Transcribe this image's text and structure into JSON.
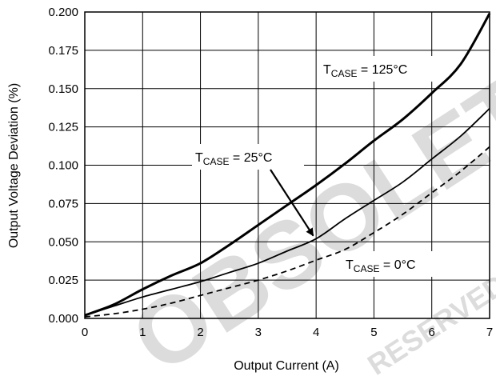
{
  "watermark": {
    "text": "OBSOLETE",
    "subtext": "RESERVED DEVICE",
    "color": "#dcdcdc"
  },
  "chart_data": {
    "type": "line",
    "title": "",
    "xlabel": "Output Current (A)",
    "ylabel": "Output Voltage Deviation (%)",
    "xlim": [
      0,
      7
    ],
    "ylim": [
      0,
      0.2
    ],
    "x_ticks": [
      "0",
      "1",
      "2",
      "3",
      "4",
      "5",
      "6",
      "7"
    ],
    "y_ticks": [
      "0.000",
      "0.025",
      "0.050",
      "0.075",
      "0.100",
      "0.125",
      "0.150",
      "0.175",
      "0.200"
    ],
    "grid": true,
    "series": [
      {
        "style": "thick-solid",
        "color": "#000000",
        "x": [
          0,
          0.5,
          1,
          1.5,
          2,
          2.5,
          3,
          3.5,
          4,
          4.5,
          5,
          5.5,
          6,
          6.5,
          7
        ],
        "y": [
          0.002,
          0.009,
          0.019,
          0.028,
          0.036,
          0.048,
          0.061,
          0.074,
          0.087,
          0.101,
          0.116,
          0.13,
          0.147,
          0.166,
          0.199
        ]
      },
      {
        "style": "thin-solid",
        "color": "#000000",
        "x": [
          0,
          0.5,
          1,
          1.5,
          2,
          2.5,
          3,
          3.5,
          4,
          4.5,
          5,
          5.5,
          6,
          6.5,
          7
        ],
        "y": [
          0.002,
          0.008,
          0.014,
          0.019,
          0.024,
          0.03,
          0.036,
          0.044,
          0.052,
          0.065,
          0.077,
          0.089,
          0.104,
          0.119,
          0.137
        ]
      },
      {
        "style": "dashed",
        "color": "#000000",
        "x": [
          0,
          0.5,
          1,
          1.5,
          2,
          2.5,
          3,
          3.5,
          4,
          4.5,
          5,
          5.5,
          6,
          6.5,
          7
        ],
        "y": [
          0.001,
          0.003,
          0.006,
          0.01,
          0.015,
          0.02,
          0.025,
          0.031,
          0.038,
          0.045,
          0.056,
          0.068,
          0.082,
          0.096,
          0.112
        ]
      }
    ],
    "annotations": [
      {
        "label_main": "T",
        "label_sub": "CASE",
        "label_rest": " = 125°C",
        "series_index": 0
      },
      {
        "label_main": "T",
        "label_sub": "CASE",
        "label_rest": " = 25°C",
        "series_index": 1,
        "arrow_to": [
          3.95,
          0.054
        ]
      },
      {
        "label_main": "T",
        "label_sub": "CASE",
        "label_rest": " = 0°C",
        "series_index": 2
      }
    ]
  }
}
